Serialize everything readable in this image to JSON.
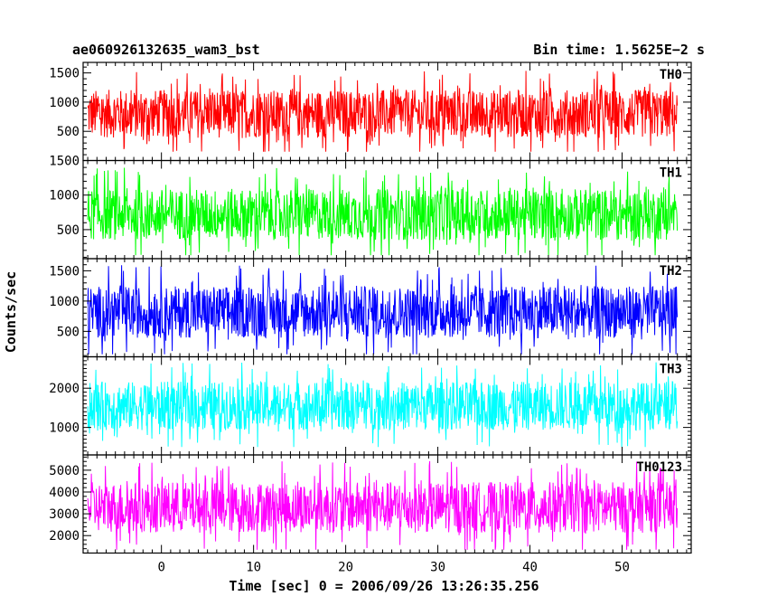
{
  "chart_data": {
    "type": "line",
    "title": "ae060926132635_wam3_bst",
    "subtitle": "Bin time: 1.5625E−2 s",
    "xlabel": "Time [sec] 0 = 2006/09/26 13:26:35.256",
    "ylabel": "Counts/sec",
    "xlim": [
      -8.5,
      57.5
    ],
    "x_data_range": [
      -8,
      56
    ],
    "x_ticks": [
      0,
      10,
      20,
      30,
      40,
      50
    ],
    "panels": [
      {
        "name": "TH0",
        "color": "#ff0000",
        "ylim": [
          0,
          1680
        ],
        "y_ticks": [
          500,
          1000,
          1500
        ],
        "y_range": [
          150,
          1650
        ],
        "y_mean": 800
      },
      {
        "name": "TH1",
        "color": "#00ff00",
        "ylim": [
          80,
          1500
        ],
        "y_ticks": [
          500,
          1000,
          1500
        ],
        "y_range": [
          130,
          1480
        ],
        "y_mean": 720
      },
      {
        "name": "TH2",
        "color": "#0000ff",
        "ylim": [
          80,
          1700
        ],
        "y_ticks": [
          500,
          1000,
          1500
        ],
        "y_range": [
          120,
          1680
        ],
        "y_mean": 820
      },
      {
        "name": "TH3",
        "color": "#00ffff",
        "ylim": [
          300,
          2800
        ],
        "y_ticks": [
          1000,
          2000
        ],
        "y_range": [
          500,
          2750
        ],
        "y_mean": 1550
      },
      {
        "name": "TH0123",
        "color": "#ff00ff",
        "ylim": [
          1200,
          5700
        ],
        "y_ticks": [
          2000,
          3000,
          4000,
          5000
        ],
        "y_range": [
          1350,
          5600
        ],
        "y_mean": 3300
      }
    ]
  }
}
